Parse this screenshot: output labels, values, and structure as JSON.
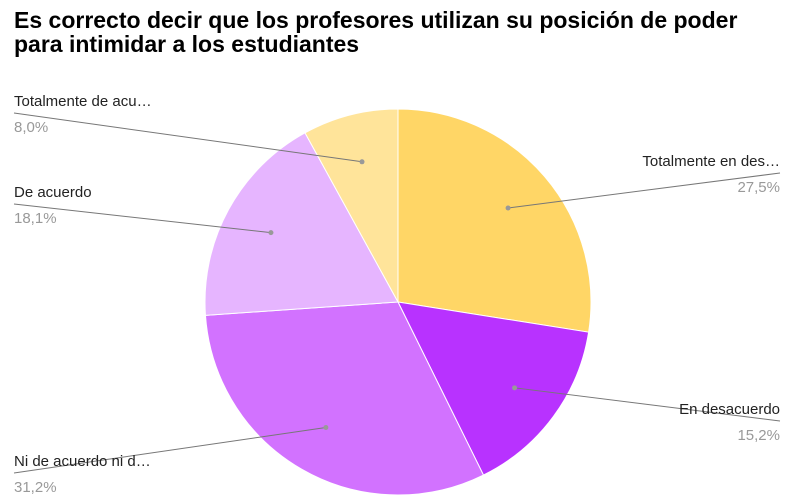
{
  "chart_data": {
    "type": "pie",
    "title": "Es correcto decir que los profesores utilizan su posición de poder para intimidar a los estudiantes",
    "categories": [
      "Totalmente en des…",
      "En desacuerdo",
      "Ni de acuerdo ni d…",
      "De acuerdo",
      "Totalmente de acu…"
    ],
    "values": [
      27.5,
      15.2,
      31.2,
      18.1,
      8.0
    ],
    "value_labels": [
      "27,5%",
      "15,2%",
      "31,2%",
      "18,1%",
      "8,0%"
    ],
    "colors": [
      "#ffd666",
      "#b832ff",
      "#d272ff",
      "#e6b5ff",
      "#ffe49a"
    ]
  }
}
